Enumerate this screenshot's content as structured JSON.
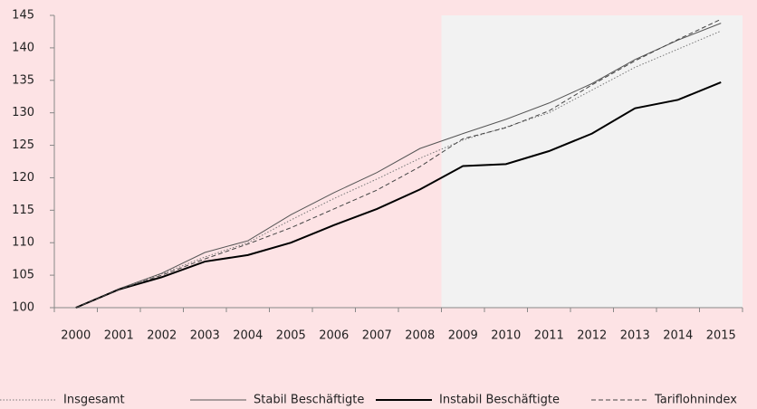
{
  "chart_data": {
    "type": "line",
    "categories": [
      "2000",
      "2001",
      "2002",
      "2003",
      "2004",
      "2005",
      "2006",
      "2007",
      "2008",
      "2009",
      "2010",
      "2011",
      "2012",
      "2013",
      "2014",
      "2015"
    ],
    "series": [
      {
        "name": "Insgesamt",
        "color": "#777777",
        "dash": "dotted",
        "width": 1,
        "values": [
          100,
          102.8,
          105.2,
          107.8,
          110,
          113.5,
          116.8,
          119.8,
          123,
          125.8,
          127.8,
          130,
          133.5,
          137,
          139.8,
          142.6
        ]
      },
      {
        "name": "Stabil Beschäftigte",
        "color": "#555555",
        "dash": "solid",
        "width": 1,
        "values": [
          100,
          102.9,
          105.3,
          108.5,
          110.3,
          114.3,
          117.7,
          120.8,
          124.5,
          126.8,
          129,
          131.5,
          134.5,
          138.2,
          141.2,
          143.8
        ]
      },
      {
        "name": "Instabil Beschäftigte",
        "color": "#000000",
        "dash": "solid",
        "width": 2,
        "values": [
          100,
          102.8,
          104.7,
          107.1,
          108.1,
          110,
          112.7,
          115.2,
          118.2,
          121.8,
          122.1,
          124.1,
          126.8,
          130.7,
          132,
          134.7
        ]
      },
      {
        "name": "Tariflohnindex",
        "color": "#444444",
        "dash": "dashed",
        "width": 1,
        "values": [
          100,
          102.8,
          105,
          107.5,
          109.8,
          112.3,
          115.2,
          118.1,
          121.7,
          126,
          127.7,
          130.3,
          134.3,
          138,
          141.3,
          144.4
        ]
      }
    ],
    "ylim": [
      100,
      145
    ],
    "yticks": [
      100,
      105,
      110,
      115,
      120,
      125,
      130,
      135,
      140,
      145
    ],
    "grid": false,
    "legend": "bottom"
  }
}
